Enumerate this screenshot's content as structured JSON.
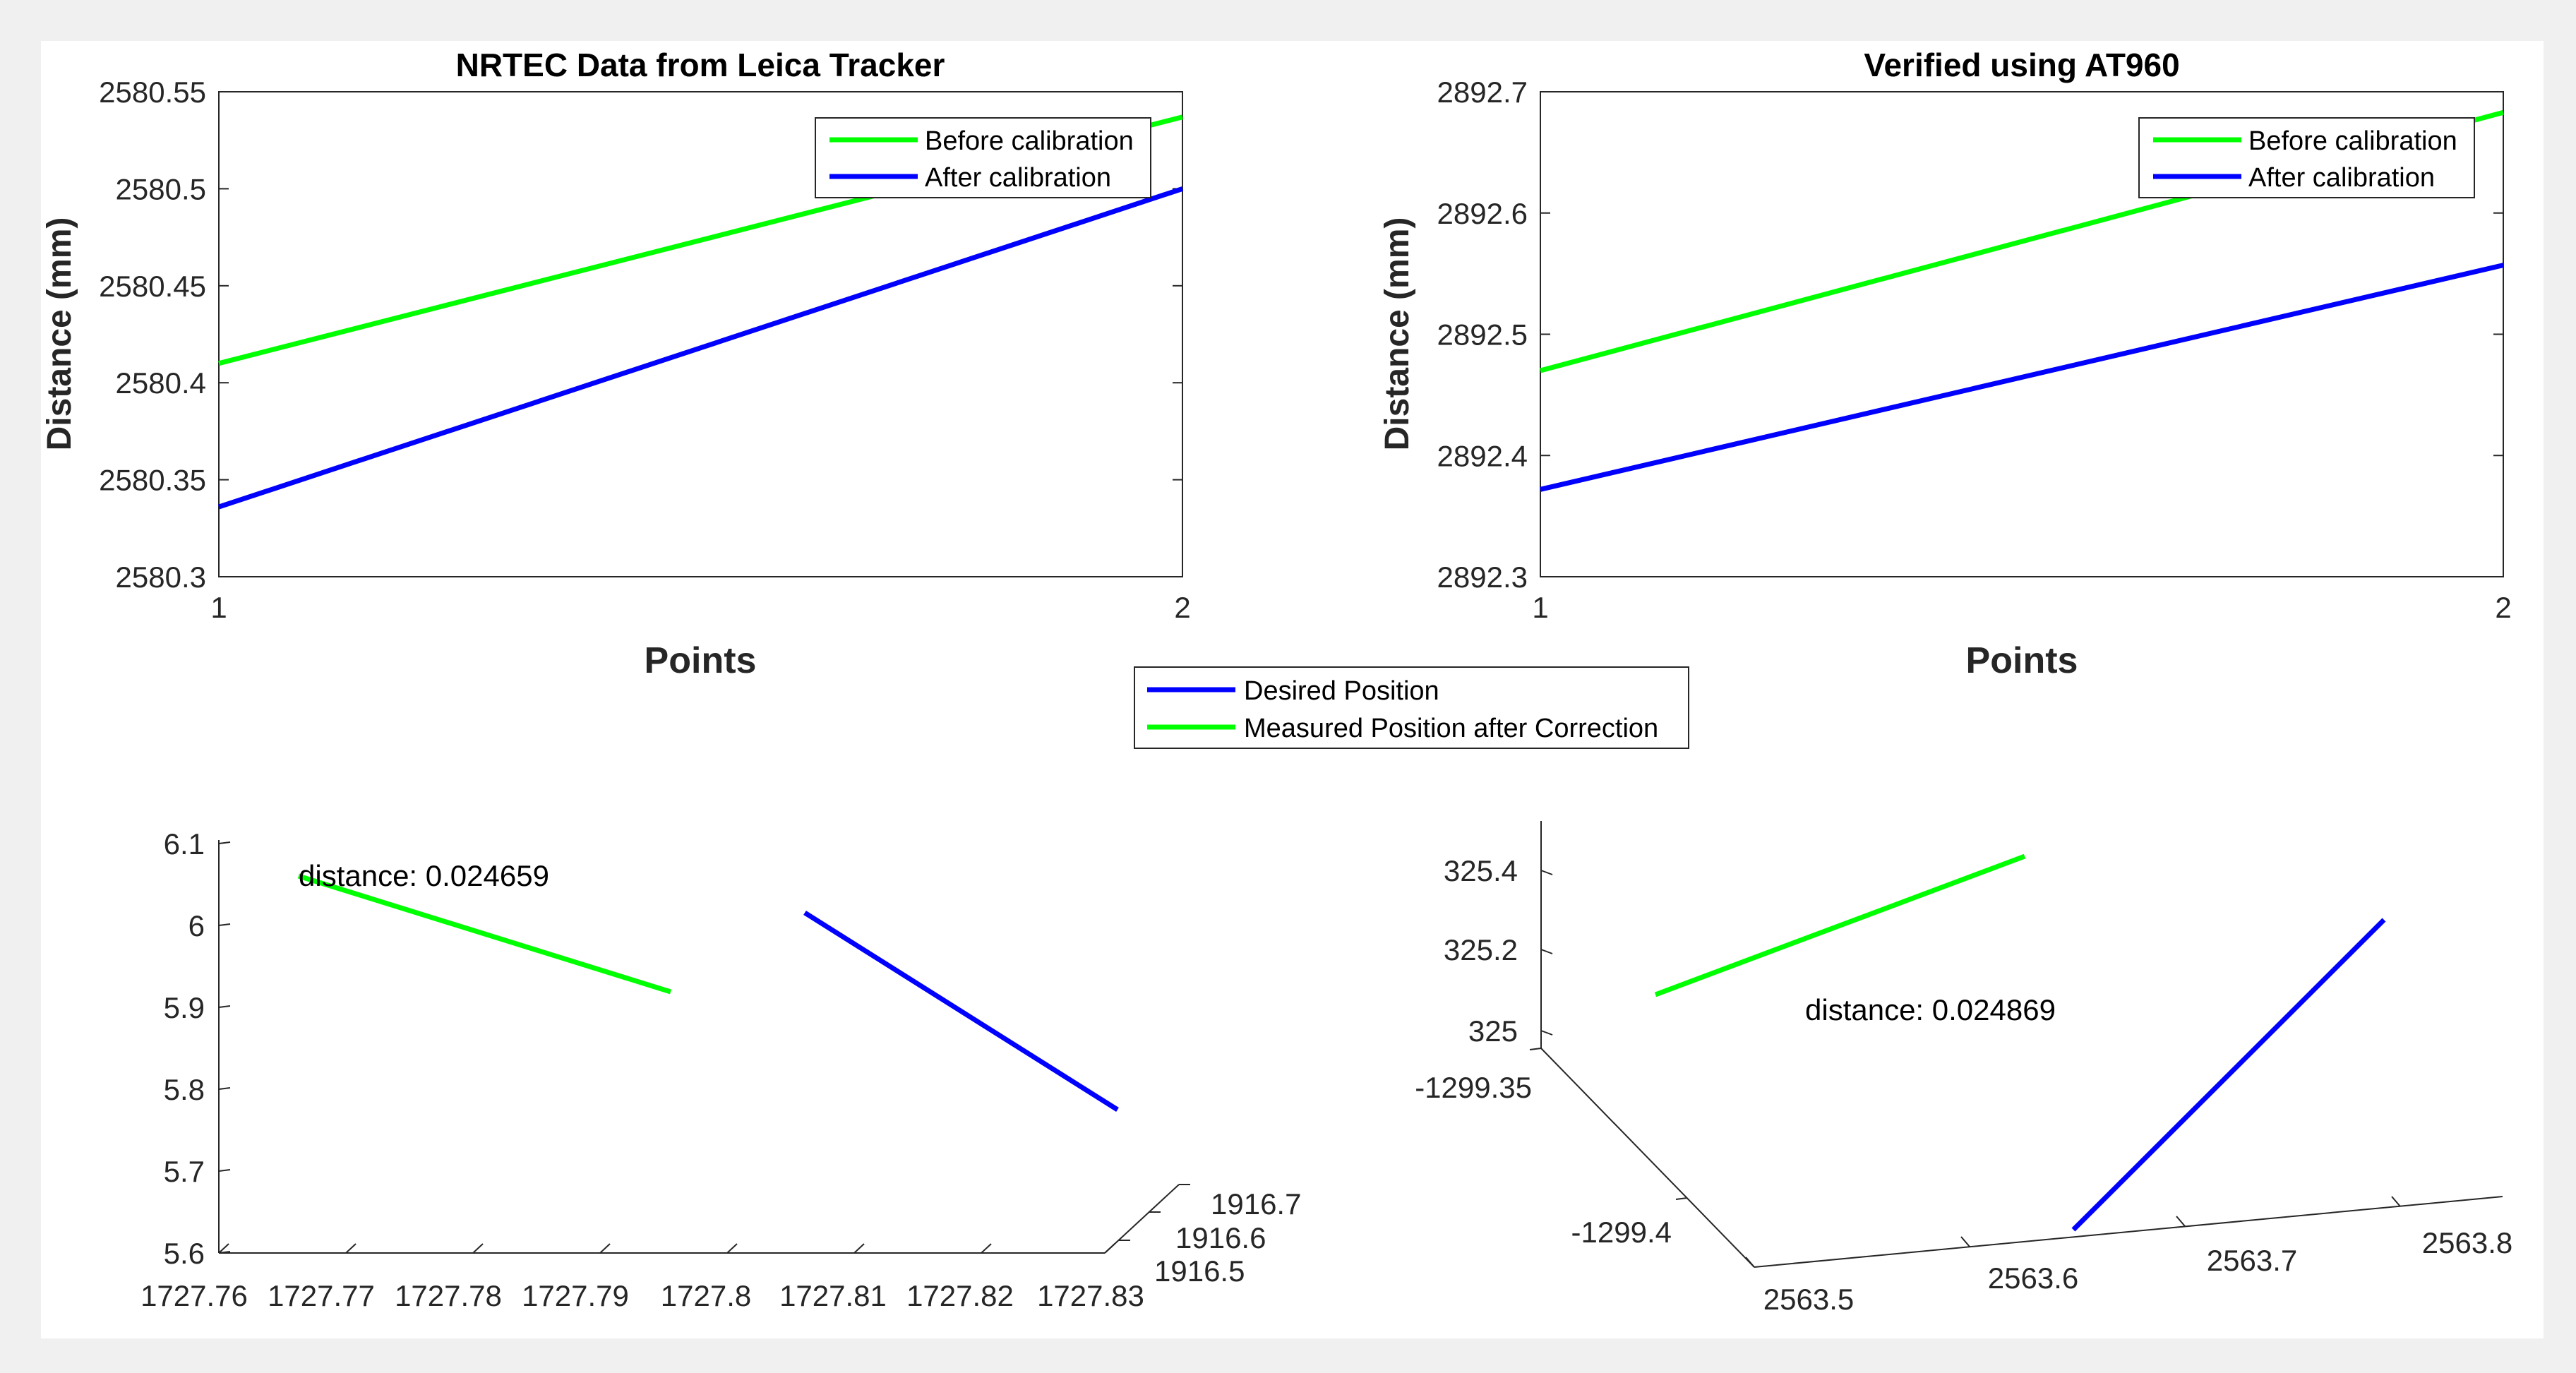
{
  "chart_data": [
    {
      "type": "line",
      "title": "NRTEC Data from Leica Tracker",
      "xlabel": "Points",
      "ylabel": "Distance (mm)",
      "x": [
        1,
        2
      ],
      "xticks": [
        "1",
        "2"
      ],
      "yticks": [
        "2580.3",
        "2580.35",
        "2580.4",
        "2580.45",
        "2580.5",
        "2580.55"
      ],
      "ylim": [
        2580.3,
        2580.55
      ],
      "legend_position": "top-right",
      "series": [
        {
          "name": "Before calibration",
          "color": "#00ff00",
          "values": [
            2580.41,
            2580.537
          ]
        },
        {
          "name": "After calibration",
          "color": "#0000ff",
          "values": [
            2580.336,
            2580.5
          ]
        }
      ]
    },
    {
      "type": "line",
      "title": "Verified using AT960",
      "xlabel": "Points",
      "ylabel": "Distance (mm)",
      "x": [
        1,
        2
      ],
      "xticks": [
        "1",
        "2"
      ],
      "yticks": [
        "2892.3",
        "2892.4",
        "2892.5",
        "2892.6",
        "2892.7"
      ],
      "ylim": [
        2892.3,
        2892.7
      ],
      "legend_position": "top-right",
      "series": [
        {
          "name": "Before calibration",
          "color": "#00ff00",
          "values": [
            2892.47,
            2892.683
          ]
        },
        {
          "name": "After calibration",
          "color": "#0000ff",
          "values": [
            2892.372,
            2892.557
          ]
        }
      ]
    },
    {
      "type": "line-3d",
      "zticks": [
        "5.6",
        "5.7",
        "5.8",
        "5.9",
        "6",
        "6.1"
      ],
      "xticks": [
        "1727.76",
        "1727.77",
        "1727.78",
        "1727.79",
        "1727.8",
        "1727.81",
        "1727.82",
        "1727.83"
      ],
      "yticks": [
        "1916.5",
        "1916.6",
        "1916.7"
      ],
      "annotation": "distance: 0.024659",
      "series": [
        {
          "name": "Measured Position after Correction",
          "color": "#00ff00"
        },
        {
          "name": "Desired Position",
          "color": "#0000ff"
        }
      ]
    },
    {
      "type": "line-3d",
      "zticks": [
        "325",
        "325.2",
        "325.4"
      ],
      "yticks": [
        "-1299.35",
        "-1299.4"
      ],
      "xticks": [
        "2563.5",
        "2563.6",
        "2563.7",
        "2563.8"
      ],
      "annotation": "distance: 0.024869",
      "series": [
        {
          "name": "Measured Position after Correction",
          "color": "#00ff00"
        },
        {
          "name": "Desired Position",
          "color": "#0000ff"
        }
      ]
    }
  ],
  "shared_legend": {
    "entries": [
      {
        "name": "Desired Position",
        "color": "#0000ff"
      },
      {
        "name": "Measured Position after Correction",
        "color": "#00ff00"
      }
    ]
  }
}
